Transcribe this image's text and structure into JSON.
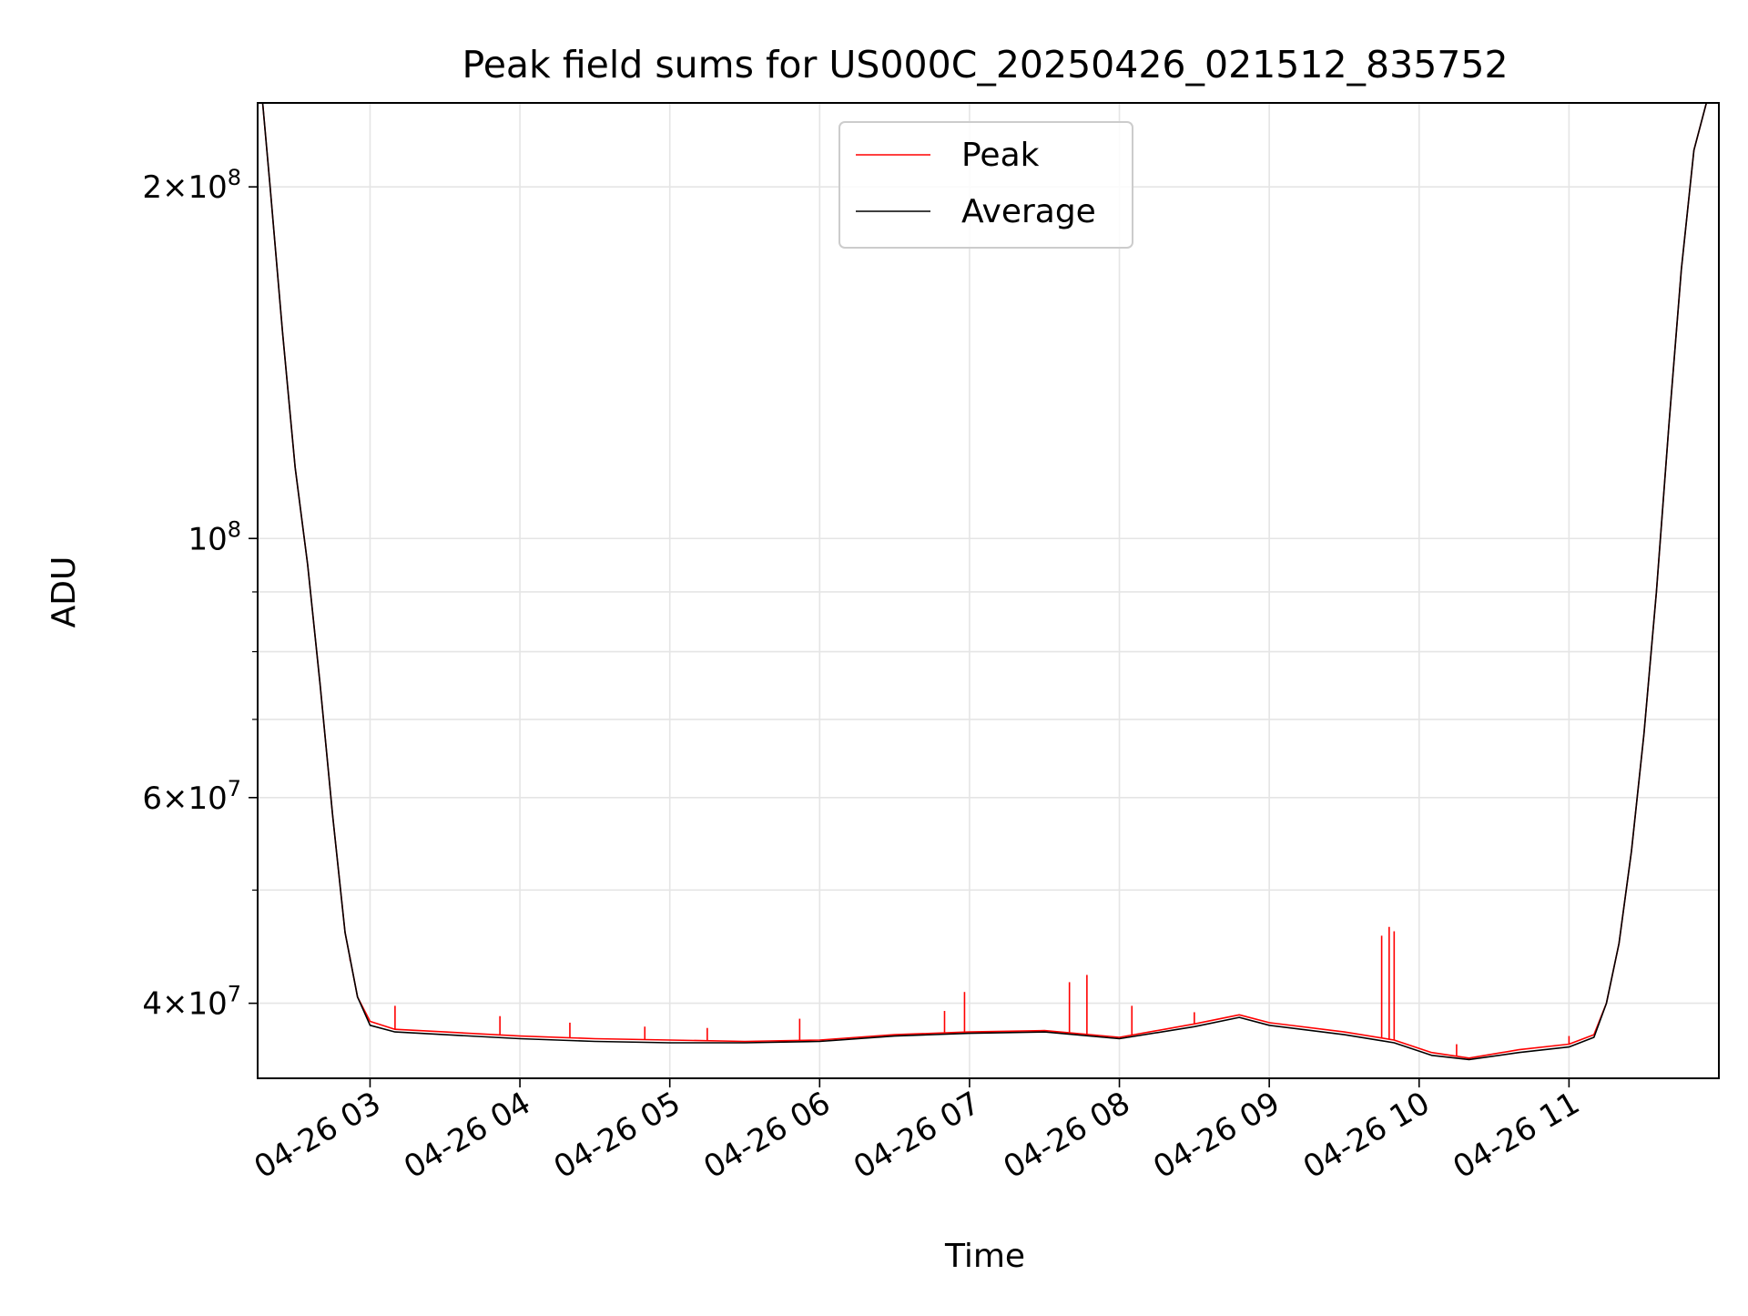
{
  "chart_data": {
    "type": "line",
    "title": "Peak field sums for US000C_20250426_021512_835752",
    "xlabel": "Time",
    "ylabel": "ADU",
    "y_scale": "log",
    "ylim": [
      34500000,
      236000000
    ],
    "xlim": [
      "2025-04-26T02:15",
      "2025-04-26T12:00"
    ],
    "grid": true,
    "legend_position": "upper-center",
    "x_tick_labels": [
      {
        "time": "2025-04-26T03:00",
        "label": "04-26 03"
      },
      {
        "time": "2025-04-26T04:00",
        "label": "04-26 04"
      },
      {
        "time": "2025-04-26T05:00",
        "label": "04-26 05"
      },
      {
        "time": "2025-04-26T06:00",
        "label": "04-26 06"
      },
      {
        "time": "2025-04-26T07:00",
        "label": "04-26 07"
      },
      {
        "time": "2025-04-26T08:00",
        "label": "04-26 08"
      },
      {
        "time": "2025-04-26T09:00",
        "label": "04-26 09"
      },
      {
        "time": "2025-04-26T10:00",
        "label": "04-26 10"
      },
      {
        "time": "2025-04-26T11:00",
        "label": "04-26 11"
      }
    ],
    "y_major_ticks": [
      {
        "value": 200000000,
        "mantissa": "2",
        "exponent": "8"
      },
      {
        "value": 100000000,
        "mantissa": "",
        "exponent": "8"
      },
      {
        "value": 60000000,
        "mantissa": "6",
        "exponent": "7"
      },
      {
        "value": 40000000,
        "mantissa": "4",
        "exponent": "7"
      }
    ],
    "y_minor_ticks": [
      50000000,
      70000000,
      80000000,
      90000000
    ],
    "series": [
      {
        "name": "Peak",
        "color": "#ff0000",
        "points": [
          [
            "2025-04-26T02:17",
            236000000
          ],
          [
            "2025-04-26T02:20",
            200000000
          ],
          [
            "2025-04-26T02:25",
            150000000
          ],
          [
            "2025-04-26T02:30",
            115000000
          ],
          [
            "2025-04-26T02:35",
            95000000
          ],
          [
            "2025-04-26T02:40",
            75000000
          ],
          [
            "2025-04-26T02:45",
            58000000
          ],
          [
            "2025-04-26T02:50",
            46000000
          ],
          [
            "2025-04-26T02:55",
            40500000
          ],
          [
            "2025-04-26T03:00",
            38600000
          ],
          [
            "2025-04-26T03:10",
            38000000
          ],
          [
            "2025-04-26T03:30",
            37800000
          ],
          [
            "2025-04-26T04:00",
            37500000
          ],
          [
            "2025-04-26T04:30",
            37300000
          ],
          [
            "2025-04-26T05:00",
            37200000
          ],
          [
            "2025-04-26T05:30",
            37100000
          ],
          [
            "2025-04-26T06:00",
            37200000
          ],
          [
            "2025-04-26T06:30",
            37600000
          ],
          [
            "2025-04-26T07:00",
            37800000
          ],
          [
            "2025-04-26T07:30",
            37900000
          ],
          [
            "2025-04-26T08:00",
            37400000
          ],
          [
            "2025-04-26T08:30",
            38400000
          ],
          [
            "2025-04-26T08:48",
            39100000
          ],
          [
            "2025-04-26T09:00",
            38500000
          ],
          [
            "2025-04-26T09:30",
            37800000
          ],
          [
            "2025-04-26T09:50",
            37200000
          ],
          [
            "2025-04-26T10:05",
            36300000
          ],
          [
            "2025-04-26T10:20",
            35900000
          ],
          [
            "2025-04-26T10:40",
            36500000
          ],
          [
            "2025-04-26T11:00",
            36900000
          ],
          [
            "2025-04-26T11:10",
            37600000
          ],
          [
            "2025-04-26T11:15",
            40000000
          ],
          [
            "2025-04-26T11:20",
            45000000
          ],
          [
            "2025-04-26T11:25",
            54000000
          ],
          [
            "2025-04-26T11:30",
            68000000
          ],
          [
            "2025-04-26T11:35",
            90000000
          ],
          [
            "2025-04-26T11:40",
            125000000
          ],
          [
            "2025-04-26T11:45",
            170000000
          ],
          [
            "2025-04-26T11:50",
            215000000
          ],
          [
            "2025-04-26T11:55",
            236000000
          ]
        ],
        "spikes": [
          [
            "2025-04-26T02:52",
            43500000
          ],
          [
            "2025-04-26T03:10",
            39800000
          ],
          [
            "2025-04-26T03:52",
            39000000
          ],
          [
            "2025-04-26T04:20",
            38500000
          ],
          [
            "2025-04-26T04:50",
            38200000
          ],
          [
            "2025-04-26T05:15",
            38100000
          ],
          [
            "2025-04-26T05:52",
            38800000
          ],
          [
            "2025-04-26T06:50",
            39400000
          ],
          [
            "2025-04-26T06:58",
            40900000
          ],
          [
            "2025-04-26T07:40",
            41700000
          ],
          [
            "2025-04-26T07:47",
            42300000
          ],
          [
            "2025-04-26T08:05",
            39800000
          ],
          [
            "2025-04-26T08:30",
            39300000
          ],
          [
            "2025-04-26T09:45",
            45700000
          ],
          [
            "2025-04-26T09:48",
            46500000
          ],
          [
            "2025-04-26T09:50",
            46100000
          ],
          [
            "2025-04-26T10:15",
            36900000
          ],
          [
            "2025-04-26T11:00",
            37500000
          ]
        ]
      },
      {
        "name": "Average",
        "color": "#000000",
        "points": [
          [
            "2025-04-26T02:17",
            236000000
          ],
          [
            "2025-04-26T02:20",
            200000000
          ],
          [
            "2025-04-26T02:25",
            150000000
          ],
          [
            "2025-04-26T02:30",
            115000000
          ],
          [
            "2025-04-26T02:35",
            95000000
          ],
          [
            "2025-04-26T02:40",
            75000000
          ],
          [
            "2025-04-26T02:45",
            58000000
          ],
          [
            "2025-04-26T02:50",
            46000000
          ],
          [
            "2025-04-26T02:55",
            40500000
          ],
          [
            "2025-04-26T03:00",
            38300000
          ],
          [
            "2025-04-26T03:10",
            37800000
          ],
          [
            "2025-04-26T03:30",
            37600000
          ],
          [
            "2025-04-26T04:00",
            37300000
          ],
          [
            "2025-04-26T04:30",
            37100000
          ],
          [
            "2025-04-26T05:00",
            37000000
          ],
          [
            "2025-04-26T05:30",
            37000000
          ],
          [
            "2025-04-26T06:00",
            37100000
          ],
          [
            "2025-04-26T06:30",
            37500000
          ],
          [
            "2025-04-26T07:00",
            37700000
          ],
          [
            "2025-04-26T07:30",
            37800000
          ],
          [
            "2025-04-26T08:00",
            37300000
          ],
          [
            "2025-04-26T08:30",
            38200000
          ],
          [
            "2025-04-26T08:48",
            38900000
          ],
          [
            "2025-04-26T09:00",
            38300000
          ],
          [
            "2025-04-26T09:30",
            37600000
          ],
          [
            "2025-04-26T09:50",
            37000000
          ],
          [
            "2025-04-26T10:05",
            36100000
          ],
          [
            "2025-04-26T10:20",
            35800000
          ],
          [
            "2025-04-26T10:40",
            36300000
          ],
          [
            "2025-04-26T11:00",
            36700000
          ],
          [
            "2025-04-26T11:10",
            37400000
          ],
          [
            "2025-04-26T11:15",
            40000000
          ],
          [
            "2025-04-26T11:20",
            45000000
          ],
          [
            "2025-04-26T11:25",
            54000000
          ],
          [
            "2025-04-26T11:30",
            68000000
          ],
          [
            "2025-04-26T11:35",
            90000000
          ],
          [
            "2025-04-26T11:40",
            125000000
          ],
          [
            "2025-04-26T11:45",
            170000000
          ],
          [
            "2025-04-26T11:50",
            215000000
          ],
          [
            "2025-04-26T11:55",
            236000000
          ]
        ]
      }
    ]
  }
}
